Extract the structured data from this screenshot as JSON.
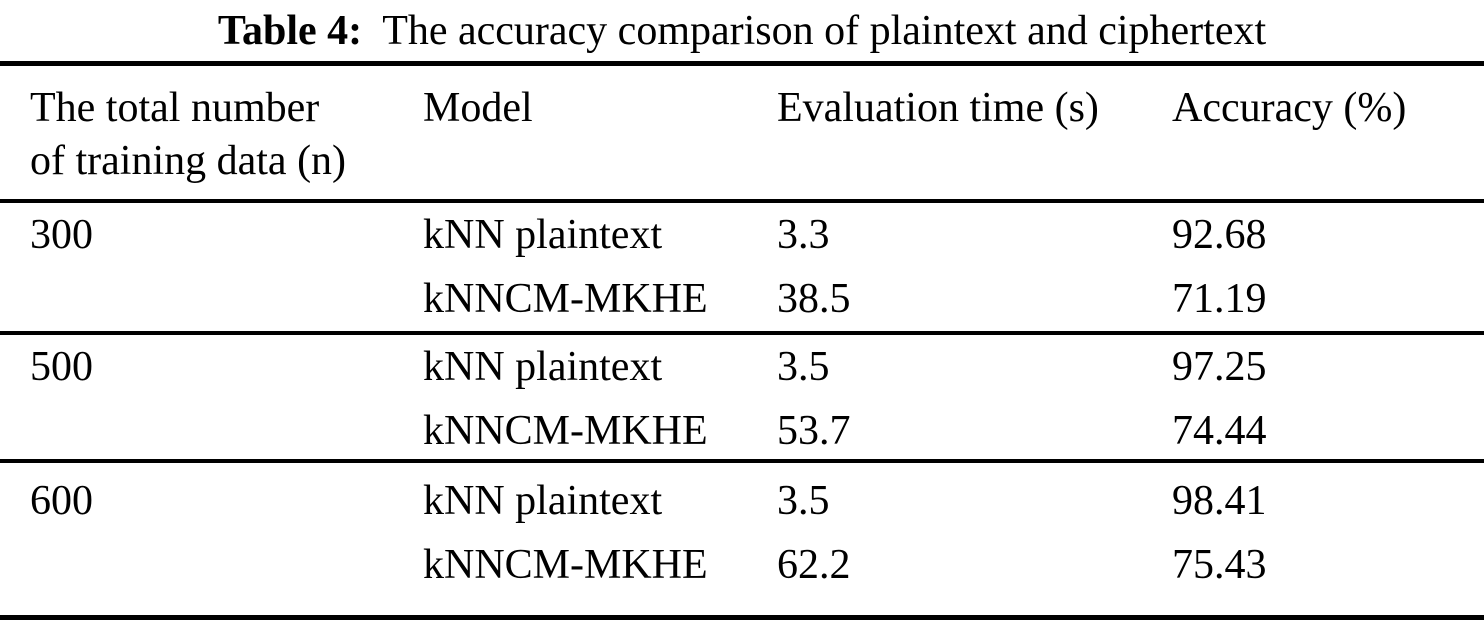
{
  "caption": {
    "label": "Table 4:",
    "text": "The accuracy comparison of plaintext and ciphertext"
  },
  "table": {
    "headers": {
      "n_line1": "The total number",
      "n_line2": "of training data (n)",
      "model": "Model",
      "eval_time": "Evaluation time (s)",
      "accuracy": "Accuracy (%)"
    },
    "groups": [
      {
        "n": "300",
        "rows": [
          {
            "model": "kNN plaintext",
            "time": "3.3",
            "accuracy": "92.68"
          },
          {
            "model": "kNNCM-MKHE",
            "time": "38.5",
            "accuracy": "71.19"
          }
        ]
      },
      {
        "n": "500",
        "rows": [
          {
            "model": "kNN plaintext",
            "time": "3.5",
            "accuracy": "97.25"
          },
          {
            "model": "kNNCM-MKHE",
            "time": "53.7",
            "accuracy": "74.44"
          }
        ]
      },
      {
        "n": "600",
        "rows": [
          {
            "model": "kNN plaintext",
            "time": "3.5",
            "accuracy": "98.41"
          },
          {
            "model": "kNNCM-MKHE",
            "time": "62.2",
            "accuracy": "75.43"
          }
        ]
      }
    ]
  },
  "colors": {
    "text": "#000000",
    "background": "#ffffff",
    "rule": "#000000"
  }
}
